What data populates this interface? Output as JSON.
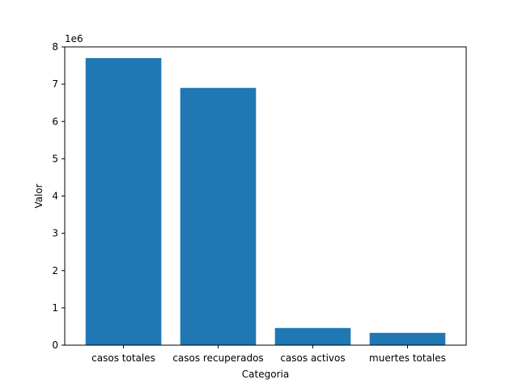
{
  "chart_data": {
    "type": "bar",
    "categories": [
      "casos totales",
      "casos recuperados",
      "casos activos",
      "muertes totales"
    ],
    "values": [
      7700000,
      6900000,
      460000,
      330000
    ],
    "xlabel": "Categoria",
    "ylabel": "Valor",
    "offset_label": "1e6",
    "yticks": [
      0,
      1000000,
      2000000,
      3000000,
      4000000,
      5000000,
      6000000,
      7000000,
      8000000
    ],
    "ytick_labels": [
      "0",
      "1",
      "2",
      "3",
      "4",
      "5",
      "6",
      "7",
      "8"
    ],
    "ylim": [
      0,
      8000000
    ],
    "grid": false,
    "bar_color": "#1f77b4"
  }
}
